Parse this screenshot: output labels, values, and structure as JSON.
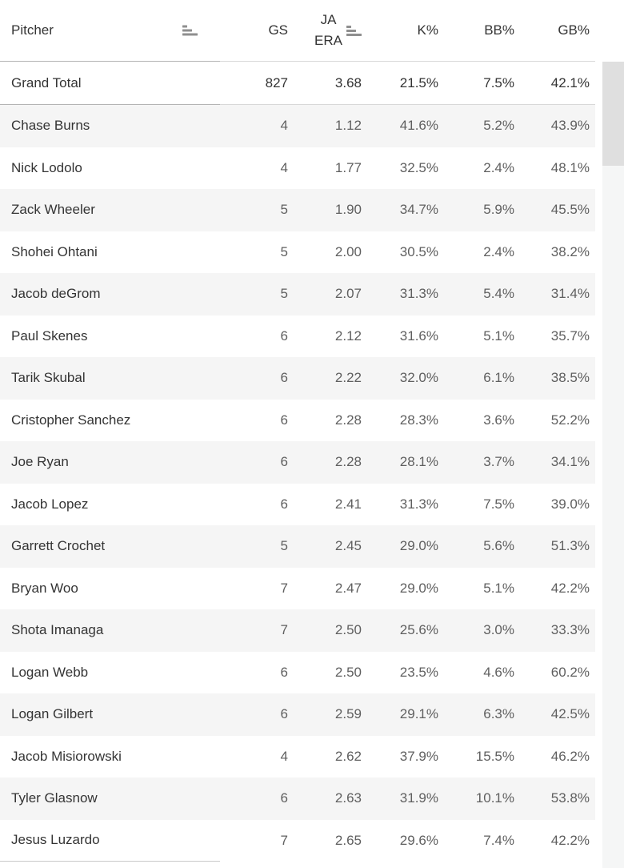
{
  "table": {
    "columns": [
      {
        "key": "pitcher",
        "label": "Pitcher",
        "sortable": true,
        "sort_icon": "sort-ascending-icon"
      },
      {
        "key": "gs",
        "label": "GS"
      },
      {
        "key": "ja_era",
        "label": "JA ERA",
        "line1": "JA",
        "line2": "ERA",
        "sortable": true,
        "sort_icon": "sort-ascending-icon"
      },
      {
        "key": "k_pct",
        "label": "K%"
      },
      {
        "key": "bb_pct",
        "label": "BB%"
      },
      {
        "key": "gb_pct",
        "label": "GB%"
      }
    ],
    "grand_total": {
      "name": "Grand Total",
      "gs": "827",
      "era": "3.68",
      "k": "21.5%",
      "bb": "7.5%",
      "gb": "42.1%"
    },
    "rows": [
      {
        "name": "Chase Burns",
        "gs": "4",
        "era": "1.12",
        "k": "41.6%",
        "bb": "5.2%",
        "gb": "43.9%"
      },
      {
        "name": "Nick Lodolo",
        "gs": "4",
        "era": "1.77",
        "k": "32.5%",
        "bb": "2.4%",
        "gb": "48.1%"
      },
      {
        "name": "Zack Wheeler",
        "gs": "5",
        "era": "1.90",
        "k": "34.7%",
        "bb": "5.9%",
        "gb": "45.5%"
      },
      {
        "name": "Shohei Ohtani",
        "gs": "5",
        "era": "2.00",
        "k": "30.5%",
        "bb": "2.4%",
        "gb": "38.2%"
      },
      {
        "name": "Jacob deGrom",
        "gs": "5",
        "era": "2.07",
        "k": "31.3%",
        "bb": "5.4%",
        "gb": "31.4%"
      },
      {
        "name": "Paul Skenes",
        "gs": "6",
        "era": "2.12",
        "k": "31.6%",
        "bb": "5.1%",
        "gb": "35.7%"
      },
      {
        "name": "Tarik Skubal",
        "gs": "6",
        "era": "2.22",
        "k": "32.0%",
        "bb": "6.1%",
        "gb": "38.5%"
      },
      {
        "name": "Cristopher Sanchez",
        "gs": "6",
        "era": "2.28",
        "k": "28.3%",
        "bb": "3.6%",
        "gb": "52.2%"
      },
      {
        "name": "Joe Ryan",
        "gs": "6",
        "era": "2.28",
        "k": "28.1%",
        "bb": "3.7%",
        "gb": "34.1%"
      },
      {
        "name": "Jacob Lopez",
        "gs": "6",
        "era": "2.41",
        "k": "31.3%",
        "bb": "7.5%",
        "gb": "39.0%"
      },
      {
        "name": "Garrett Crochet",
        "gs": "5",
        "era": "2.45",
        "k": "29.0%",
        "bb": "5.6%",
        "gb": "51.3%"
      },
      {
        "name": "Bryan Woo",
        "gs": "7",
        "era": "2.47",
        "k": "29.0%",
        "bb": "5.1%",
        "gb": "42.2%"
      },
      {
        "name": "Shota Imanaga",
        "gs": "7",
        "era": "2.50",
        "k": "25.6%",
        "bb": "3.0%",
        "gb": "33.3%"
      },
      {
        "name": "Logan Webb",
        "gs": "6",
        "era": "2.50",
        "k": "23.5%",
        "bb": "4.6%",
        "gb": "60.2%"
      },
      {
        "name": "Logan Gilbert",
        "gs": "6",
        "era": "2.59",
        "k": "29.1%",
        "bb": "6.3%",
        "gb": "42.5%"
      },
      {
        "name": "Jacob Misiorowski",
        "gs": "4",
        "era": "2.62",
        "k": "37.9%",
        "bb": "15.5%",
        "gb": "46.2%"
      },
      {
        "name": "Tyler Glasnow",
        "gs": "6",
        "era": "2.63",
        "k": "31.9%",
        "bb": "10.1%",
        "gb": "53.8%"
      },
      {
        "name": "Jesus Luzardo",
        "gs": "7",
        "era": "2.65",
        "k": "29.6%",
        "bb": "7.4%",
        "gb": "42.2%"
      }
    ]
  },
  "colors": {
    "row_band": "#f5f5f5",
    "header_border_left_pane": "#b4b4b4",
    "header_border_right_pane": "#d8d8d8",
    "text_dark": "#343434",
    "text_value": "#5f5f5f",
    "sort_icon": "#8f8f8f",
    "scrollbar_track": "#f5f6f6",
    "scrollbar_thumb": "#dfdfdf"
  }
}
